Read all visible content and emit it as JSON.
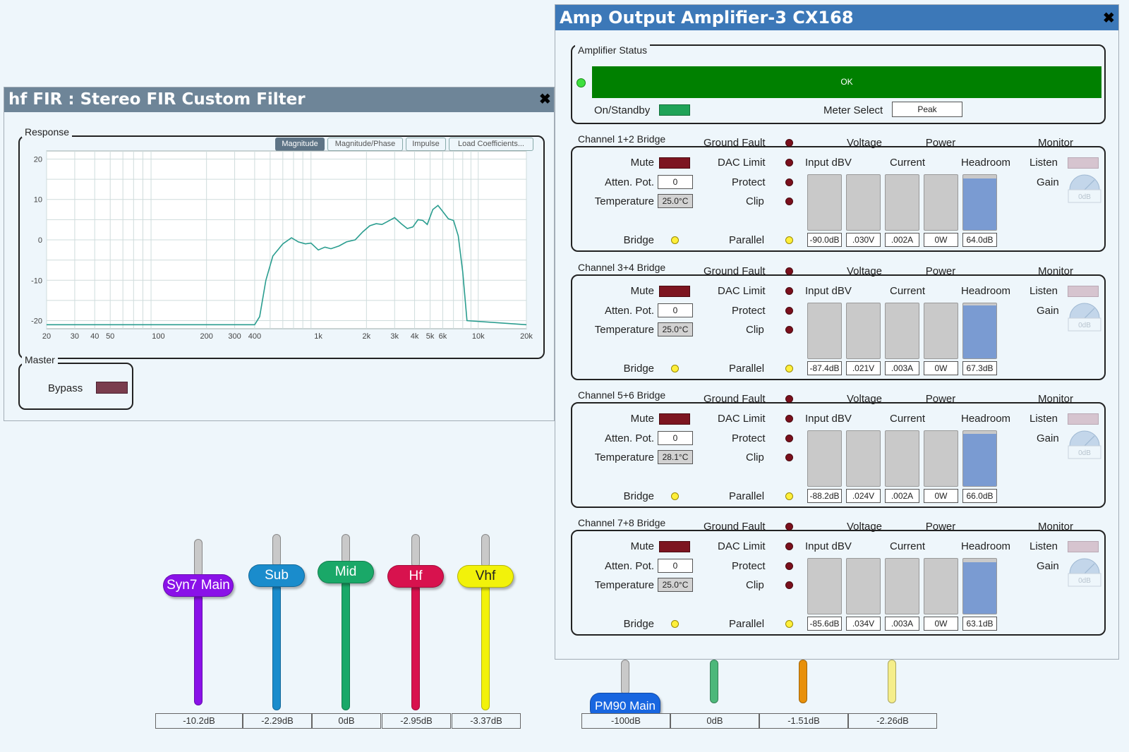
{
  "fir_window": {
    "title": "hf FIR : Stereo FIR Custom Filter",
    "response_label": "Response",
    "tabs": [
      "Magnitude",
      "Magnitude/Phase",
      "Impulse",
      "Load Coefficients..."
    ],
    "active_tab": "Magnitude",
    "master_label": "Master",
    "bypass_label": "Bypass",
    "chart_data": {
      "type": "line",
      "x_scale": "log",
      "xlim": [
        20,
        20000
      ],
      "ylim": [
        -22,
        22
      ],
      "y_ticks": [
        20,
        10,
        0,
        -10,
        -20
      ],
      "x_ticks": [
        {
          "v": 20,
          "label": "20"
        },
        {
          "v": 30,
          "label": "30"
        },
        {
          "v": 40,
          "label": "40"
        },
        {
          "v": 50,
          "label": "50"
        },
        {
          "v": 100,
          "label": "100"
        },
        {
          "v": 200,
          "label": "200"
        },
        {
          "v": 300,
          "label": "300"
        },
        {
          "v": 400,
          "label": "400"
        },
        {
          "v": 1000,
          "label": "1k"
        },
        {
          "v": 2000,
          "label": "2k"
        },
        {
          "v": 3000,
          "label": "3k"
        },
        {
          "v": 4000,
          "label": "4k"
        },
        {
          "v": 5000,
          "label": "5k"
        },
        {
          "v": 6000,
          "label": "6k"
        },
        {
          "v": 10000,
          "label": "10k"
        },
        {
          "v": 20000,
          "label": "20k"
        }
      ],
      "grid": true,
      "series": [
        {
          "color": "#2a9d8f",
          "x": [
            20,
            400,
            430,
            470,
            520,
            600,
            680,
            750,
            830,
            900,
            1000,
            1100,
            1200,
            1350,
            1500,
            1700,
            1900,
            2100,
            2300,
            2500,
            2700,
            3000,
            3300,
            3600,
            3900,
            4200,
            4500,
            4800,
            5200,
            5600,
            6000,
            6500,
            7000,
            7500,
            8000,
            8500,
            20000
          ],
          "y": [
            -21,
            -21,
            -19,
            -10,
            -4,
            -1,
            0.5,
            -0.5,
            -1,
            -0.8,
            -2.5,
            -1.8,
            -2.2,
            -1.5,
            -0.5,
            0,
            2,
            3.5,
            4,
            3.8,
            4.5,
            5.5,
            4,
            2.8,
            3.2,
            5,
            4.8,
            3.8,
            7.5,
            8.5,
            7,
            5.2,
            4.8,
            1,
            -8,
            -20,
            -21
          ]
        }
      ]
    }
  },
  "amp_window": {
    "title": "Amp Output Amplifier-3 CX168",
    "status_group": "Amplifier Status",
    "status_text": "OK",
    "on_standby_label": "On/Standby",
    "meter_select_label": "Meter Select",
    "meter_select_value": "Peak",
    "labels": {
      "ground_fault": "Ground Fault",
      "voltage": "Voltage",
      "power": "Power",
      "monitor": "Monitor",
      "mute": "Mute",
      "dac_limit": "DAC Limit",
      "input_dbv": "Input dBV",
      "current": "Current",
      "headroom": "Headroom",
      "listen": "Listen",
      "atten_pot": "Atten. Pot.",
      "protect": "Protect",
      "gain": "Gain",
      "temperature": "Temperature",
      "clip": "Clip",
      "bridge": "Bridge",
      "parallel": "Parallel"
    },
    "channels": [
      {
        "name": "Channel 1+2 Bridge",
        "atten": "0",
        "temp": "25.0°C",
        "gain": "0dB",
        "meters": [
          {
            "value": "-90.0dB",
            "level": 0
          },
          {
            "value": ".030V",
            "level": 0
          },
          {
            "value": ".002A",
            "level": 0
          },
          {
            "value": "0W",
            "level": 0
          },
          {
            "value": "64.0dB",
            "level": 0.94
          }
        ]
      },
      {
        "name": "Channel 3+4 Bridge",
        "atten": "0",
        "temp": "25.0°C",
        "gain": "0dB",
        "meters": [
          {
            "value": "-87.4dB",
            "level": 0
          },
          {
            "value": ".021V",
            "level": 0
          },
          {
            "value": ".003A",
            "level": 0
          },
          {
            "value": "0W",
            "level": 0
          },
          {
            "value": "67.3dB",
            "level": 0.96
          }
        ]
      },
      {
        "name": "Channel 5+6 Bridge",
        "atten": "0",
        "temp": "28.1°C",
        "gain": "0dB",
        "meters": [
          {
            "value": "-88.2dB",
            "level": 0
          },
          {
            "value": ".024V",
            "level": 0
          },
          {
            "value": ".002A",
            "level": 0
          },
          {
            "value": "0W",
            "level": 0
          },
          {
            "value": "66.0dB",
            "level": 0.95
          }
        ]
      },
      {
        "name": "Channel 7+8 Bridge",
        "atten": "0",
        "temp": "25.0°C",
        "gain": "0dB",
        "meters": [
          {
            "value": "-85.6dB",
            "level": 0
          },
          {
            "value": ".034V",
            "level": 0
          },
          {
            "value": ".003A",
            "level": 0
          },
          {
            "value": "0W",
            "level": 0
          },
          {
            "value": "63.1dB",
            "level": 0.93
          }
        ]
      }
    ]
  },
  "faders": [
    {
      "label": "Syn7 Main",
      "value": "-10.2dB",
      "color": "#8a11e8"
    },
    {
      "label": "Sub",
      "value": "-2.29dB",
      "color": "#1a8ccc"
    },
    {
      "label": "Mid",
      "value": "0dB",
      "color": "#1aa868"
    },
    {
      "label": "Hf",
      "value": "-2.95dB",
      "color": "#d8124e"
    },
    {
      "label": "Vhf",
      "value": "-3.37dB",
      "color": "#f2f20a"
    }
  ],
  "faders_right": [
    {
      "label": "PM90 Main",
      "value": "-100dB",
      "color": "#1866e0"
    },
    {
      "label": "",
      "value": "0dB",
      "color": "#4db87a"
    },
    {
      "label": "",
      "value": "-1.51dB",
      "color": "#e8900a"
    },
    {
      "label": "",
      "value": "-2.26dB",
      "color": "#f5ee8a"
    }
  ]
}
